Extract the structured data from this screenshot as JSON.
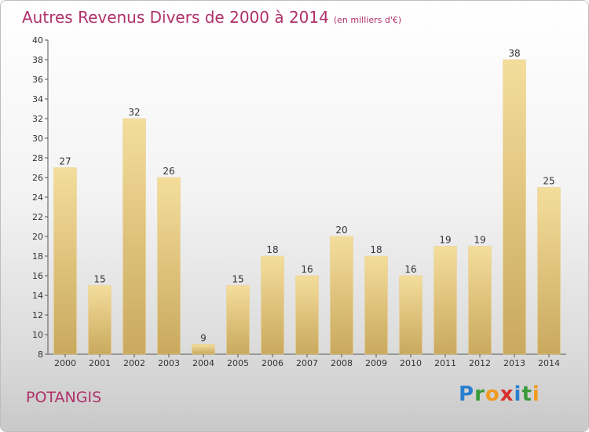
{
  "title": "Autres Revenus Divers de 2000 à 2014",
  "unit": "(en milliers d'€)",
  "commune": "POTANGIS",
  "logo": {
    "letters": [
      {
        "ch": "P",
        "color": "#2a7fcf"
      },
      {
        "ch": "r",
        "color": "#3a9a3a"
      },
      {
        "ch": "o",
        "color": "#f29a1f"
      },
      {
        "ch": "x",
        "color": "#d9302c"
      },
      {
        "ch": "i",
        "color": "#2a7fcf"
      },
      {
        "ch": "t",
        "color": "#3a9a3a"
      },
      {
        "ch": "i",
        "color": "#f29a1f"
      }
    ]
  },
  "colors": {
    "bar_light": "#f4dd9c",
    "bar_dark": "#c9a95e",
    "axis": "#555555"
  },
  "chart_data": {
    "type": "bar",
    "title": "Autres Revenus Divers de 2000 à 2014",
    "categories": [
      "2000",
      "2001",
      "2002",
      "2003",
      "2004",
      "2005",
      "2006",
      "2007",
      "2008",
      "2009",
      "2010",
      "2011",
      "2012",
      "2013",
      "2014"
    ],
    "values": [
      27,
      15,
      32,
      26,
      9,
      15,
      18,
      16,
      20,
      18,
      16,
      19,
      19,
      38,
      25
    ],
    "ylim": [
      8,
      40
    ],
    "yticks": [
      8,
      10,
      12,
      14,
      16,
      18,
      20,
      22,
      24,
      26,
      28,
      30,
      32,
      34,
      36,
      38,
      40
    ],
    "grid": false,
    "legend": "none"
  }
}
